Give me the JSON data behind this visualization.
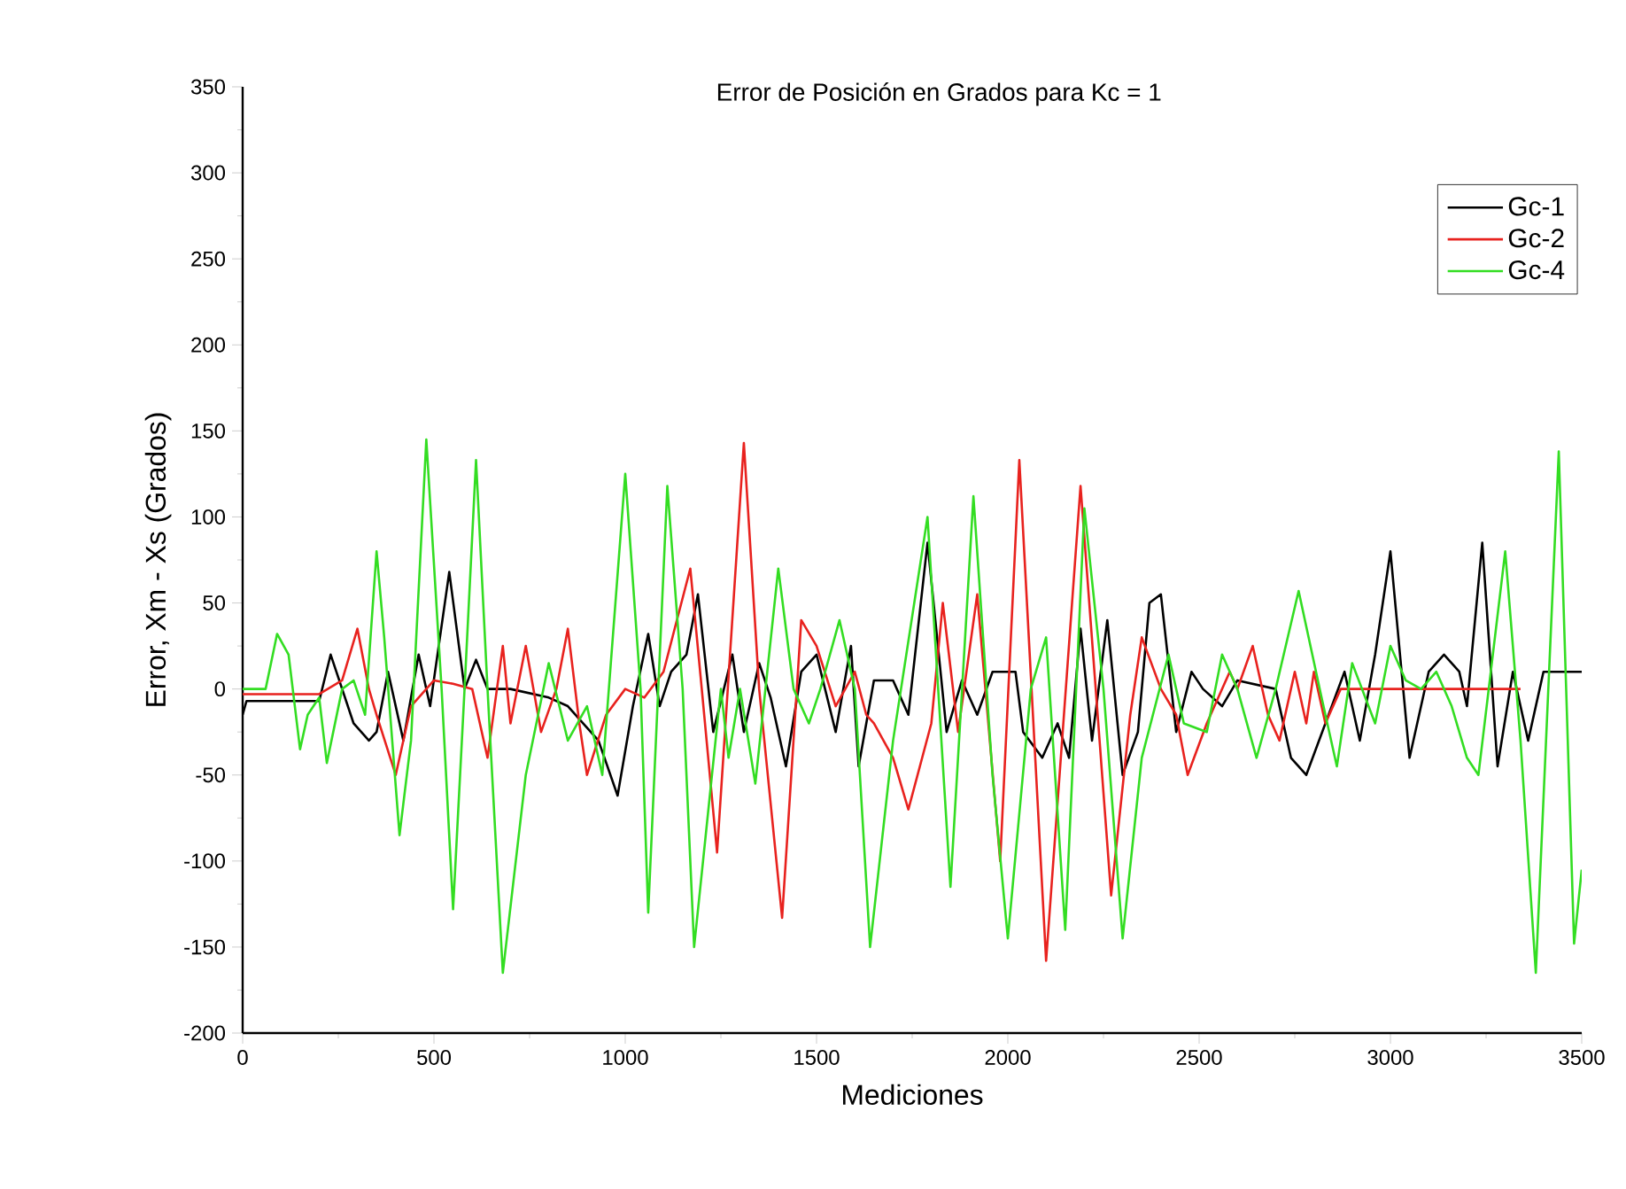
{
  "chart_data": {
    "type": "line",
    "title": "Error de Posición en Grados para Kc = 1",
    "xlabel": "Mediciones",
    "ylabel": "Error, Xm - Xs (Grados)",
    "xlim": [
      0,
      3500
    ],
    "xticks": [
      0,
      500,
      1000,
      1500,
      2000,
      2500,
      3000,
      3500
    ],
    "ylim": [
      -200,
      350
    ],
    "yticks": [
      -200,
      -150,
      -100,
      -50,
      0,
      50,
      100,
      150,
      200,
      250,
      300,
      350
    ],
    "grid": false,
    "legend": "top right",
    "marker": "none",
    "line_style": "solid",
    "series": [
      {
        "name": "Gc-1",
        "color": "#000000",
        "x": [
          0,
          10,
          200,
          230,
          260,
          290,
          330,
          350,
          380,
          420,
          460,
          490,
          540,
          580,
          610,
          640,
          700,
          800,
          850,
          930,
          980,
          1020,
          1060,
          1090,
          1120,
          1160,
          1190,
          1230,
          1280,
          1310,
          1350,
          1380,
          1420,
          1460,
          1500,
          1550,
          1590,
          1610,
          1650,
          1700,
          1740,
          1790,
          1840,
          1880,
          1920,
          1960,
          2020,
          2040,
          2090,
          2130,
          2160,
          2190,
          2220,
          2260,
          2300,
          2340,
          2370,
          2400,
          2440,
          2480,
          2510,
          2560,
          2600,
          2700,
          2740,
          2780,
          2830,
          2880,
          2920,
          2960,
          3000,
          3050,
          3100,
          3140,
          3180,
          3200,
          3240,
          3280,
          3320,
          3360,
          3400,
          3500
        ],
        "values": [
          -15,
          -7,
          -7,
          20,
          0,
          -20,
          -30,
          -25,
          10,
          -30,
          20,
          -10,
          68,
          0,
          17,
          0,
          0,
          -5,
          -10,
          -30,
          -62,
          -10,
          32,
          -10,
          10,
          20,
          55,
          -25,
          20,
          -25,
          15,
          -5,
          -45,
          10,
          20,
          -25,
          25,
          -45,
          5,
          5,
          -15,
          85,
          -25,
          5,
          -15,
          10,
          10,
          -25,
          -40,
          -20,
          -40,
          35,
          -30,
          40,
          -50,
          -25,
          50,
          55,
          -25,
          10,
          0,
          -10,
          5,
          0,
          -40,
          -50,
          -20,
          10,
          -30,
          20,
          80,
          -40,
          10,
          20,
          10,
          -10,
          85,
          -45,
          10,
          -30,
          10,
          10
        ]
      },
      {
        "name": "Gc-2",
        "color": "#e8221e",
        "x": [
          0,
          200,
          260,
          300,
          330,
          350,
          400,
          440,
          500,
          550,
          600,
          640,
          680,
          700,
          740,
          780,
          820,
          850,
          880,
          900,
          950,
          1000,
          1050,
          1100,
          1170,
          1200,
          1240,
          1310,
          1350,
          1410,
          1460,
          1500,
          1550,
          1600,
          1630,
          1650,
          1700,
          1740,
          1800,
          1830,
          1870,
          1920,
          1980,
          2030,
          2100,
          2190,
          2270,
          2320,
          2350,
          2400,
          2440,
          2470,
          2520,
          2580,
          2600,
          2640,
          2680,
          2710,
          2750,
          2780,
          2800,
          2830,
          2870,
          2920,
          3000,
          3340
        ],
        "values": [
          -3,
          -3,
          5,
          35,
          0,
          -15,
          -50,
          -10,
          5,
          3,
          0,
          -40,
          25,
          -20,
          25,
          -25,
          0,
          35,
          -20,
          -50,
          -15,
          0,
          -5,
          10,
          70,
          0,
          -95,
          143,
          0,
          -133,
          40,
          25,
          -10,
          10,
          -15,
          -20,
          -40,
          -70,
          -20,
          50,
          -25,
          55,
          -100,
          133,
          -158,
          118,
          -120,
          -15,
          30,
          0,
          -15,
          -50,
          -20,
          10,
          0,
          25,
          -15,
          -30,
          10,
          -20,
          10,
          -20,
          0,
          0,
          0,
          0
        ]
      },
      {
        "name": "Gc-4",
        "color": "#33dd22",
        "x": [
          0,
          60,
          90,
          120,
          150,
          170,
          200,
          220,
          260,
          290,
          320,
          350,
          370,
          410,
          440,
          480,
          520,
          550,
          580,
          610,
          640,
          680,
          740,
          800,
          850,
          900,
          940,
          1000,
          1040,
          1060,
          1110,
          1150,
          1180,
          1250,
          1270,
          1300,
          1340,
          1400,
          1440,
          1480,
          1510,
          1560,
          1600,
          1640,
          1700,
          1790,
          1850,
          1910,
          1960,
          2000,
          2060,
          2100,
          2150,
          2200,
          2250,
          2300,
          2350,
          2420,
          2460,
          2520,
          2560,
          2600,
          2650,
          2700,
          2760,
          2820,
          2860,
          2900,
          2960,
          3000,
          3040,
          3080,
          3120,
          3160,
          3200,
          3230,
          3300,
          3340,
          3380,
          3440,
          3480,
          3500
        ],
        "values": [
          0,
          0,
          32,
          20,
          -35,
          -15,
          -5,
          -43,
          0,
          5,
          -15,
          80,
          30,
          -85,
          -30,
          145,
          0,
          -128,
          0,
          133,
          0,
          -165,
          -50,
          15,
          -30,
          -10,
          -50,
          125,
          0,
          -130,
          118,
          0,
          -150,
          0,
          -40,
          0,
          -55,
          70,
          0,
          -20,
          0,
          40,
          0,
          -150,
          -30,
          100,
          -115,
          112,
          -50,
          -145,
          0,
          30,
          -140,
          105,
          0,
          -145,
          -40,
          20,
          -20,
          -25,
          20,
          0,
          -40,
          0,
          57,
          -5,
          -45,
          15,
          -20,
          25,
          5,
          0,
          10,
          -10,
          -40,
          -50,
          80,
          -30,
          -165,
          138,
          -148,
          -105
        ]
      }
    ]
  }
}
